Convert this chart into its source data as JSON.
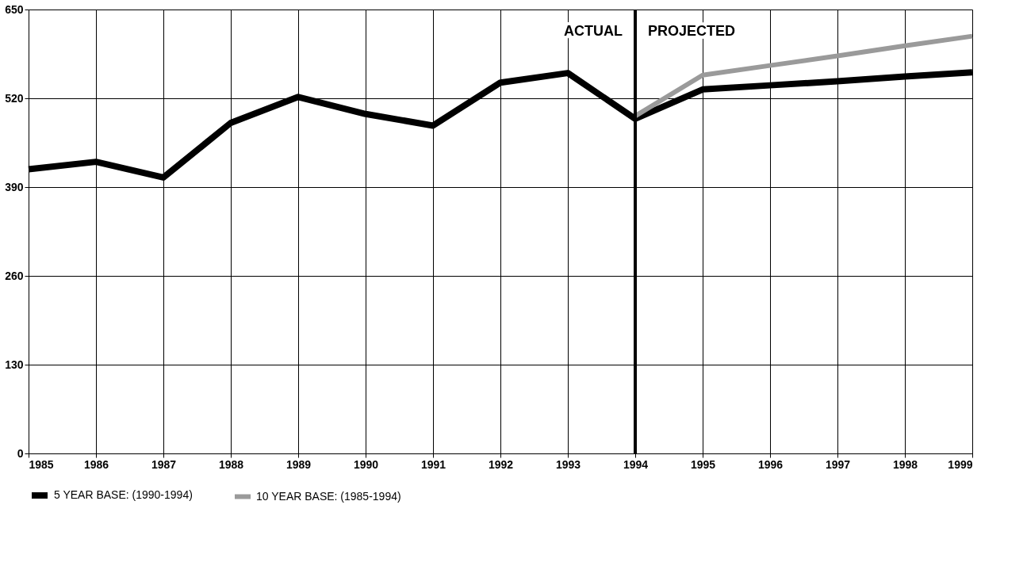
{
  "chart_data": {
    "type": "line",
    "x": [
      1985,
      1986,
      1987,
      1988,
      1989,
      1990,
      1991,
      1992,
      1993,
      1994,
      1995,
      1996,
      1997,
      1998,
      1999
    ],
    "series": [
      {
        "name": "5 YEAR BASE: (1990-1994)",
        "color": "#000000",
        "values": [
          416,
          427,
          404,
          484,
          522,
          497,
          480,
          543,
          557,
          490,
          533,
          539,
          545,
          552,
          558
        ]
      },
      {
        "name": "10 YEAR BASE: (1985-1994)",
        "color": "#9a9a9a",
        "values": [
          null,
          null,
          null,
          null,
          null,
          null,
          null,
          null,
          null,
          494,
          554,
          568,
          582,
          597,
          611
        ]
      }
    ],
    "xlim": [
      1985,
      1999
    ],
    "xticks": [
      1985,
      1986,
      1987,
      1988,
      1989,
      1990,
      1991,
      1992,
      1993,
      1994,
      1995,
      1996,
      1997,
      1998,
      1999
    ],
    "ylim": [
      0,
      650
    ],
    "yticks": [
      0,
      130,
      260,
      390,
      520,
      650
    ],
    "grid": true,
    "legend": "bottom",
    "marker": "none",
    "line_style": "solid",
    "ref_lines": [
      {
        "axis": "x",
        "value": 1994,
        "color": "#000000"
      }
    ],
    "annotations": [
      "ACTUAL",
      "PROJECTED"
    ]
  }
}
